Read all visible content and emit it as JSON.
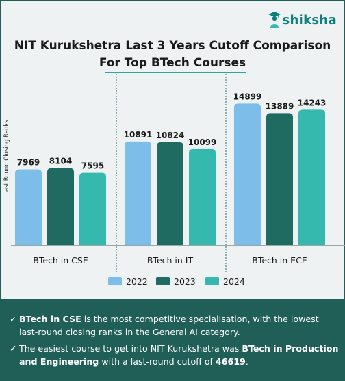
{
  "brand": {
    "name": "shiksha"
  },
  "title": {
    "line1": "NIT Kurukshetra  Last 3 Years Cutoff Comparison",
    "line2": "For Top BTech Courses"
  },
  "colors": {
    "2022": "#7dbde9",
    "2023": "#1f6b62",
    "2024": "#35b9af",
    "panel": "#1f5f57",
    "accent": "#2aa99f"
  },
  "chart_data": {
    "type": "bar",
    "title": "NIT Kurukshetra  Last 3 Years Cutoff Comparison For Top BTech Courses",
    "xlabel": "",
    "ylabel": "Last Round Closing Ranks",
    "grid": false,
    "legend": "bottom",
    "categories": [
      "BTech in CSE",
      "BTech in IT",
      "BTech in ECE"
    ],
    "series": [
      {
        "name": "2022",
        "values": [
          7969,
          10891,
          14899
        ]
      },
      {
        "name": "2023",
        "values": [
          8104,
          10824,
          13889
        ]
      },
      {
        "name": "2024",
        "values": [
          7595,
          10099,
          14243
        ]
      }
    ],
    "ylim": [
      0,
      15500
    ]
  },
  "notes": [
    {
      "bold1": "BTech in CSE",
      "text1": " is the most competitive specialisation, with the lowest last-round closing ranks in the General AI category."
    },
    {
      "text1": "The easiest course to get into NIT Kurukshetra was ",
      "bold1": "BTech in Production and Engineering",
      "text2": " with a last-round cutoff of ",
      "bold2": "46619",
      "text3": "."
    }
  ]
}
